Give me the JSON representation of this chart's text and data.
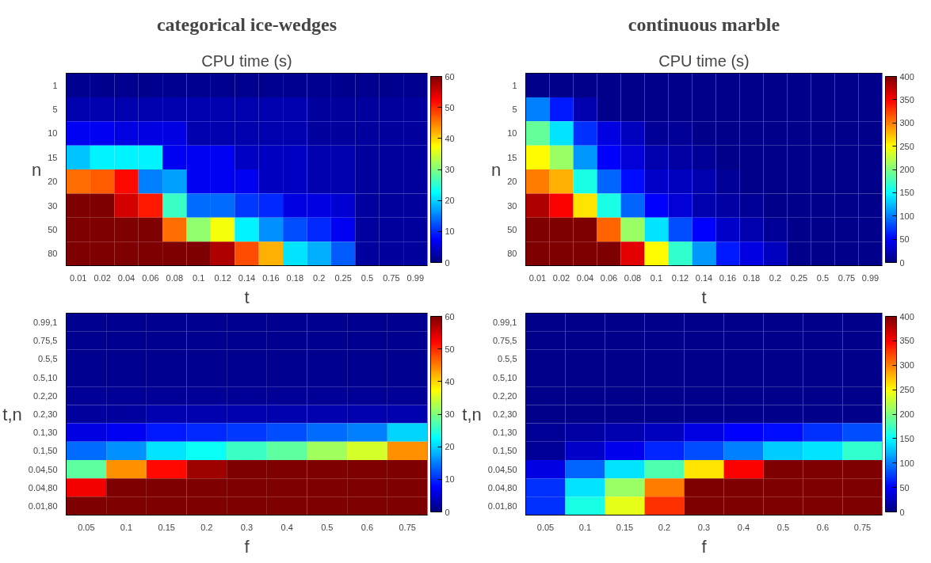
{
  "chart_data": [
    {
      "type": "heatmap",
      "subtitle": "categorical ice-wedges",
      "title": "CPU time (s)",
      "xlabel": "t",
      "ylabel": "n",
      "categories": [
        "0.01",
        "0.02",
        "0.04",
        "0.06",
        "0.08",
        "0.1",
        "0.12",
        "0.14",
        "0.16",
        "0.18",
        "0.2",
        "0.25",
        "0.5",
        "0.75",
        "0.99"
      ],
      "y_categories": [
        "1",
        "5",
        "10",
        "15",
        "20",
        "30",
        "50",
        "80"
      ],
      "cells": [
        [
          1,
          1,
          1,
          1,
          1,
          1,
          1,
          1,
          1,
          1,
          1,
          1,
          1,
          1,
          1
        ],
        [
          3,
          3,
          3,
          3,
          3,
          3,
          3,
          3,
          3,
          3,
          2,
          2,
          2,
          2,
          2
        ],
        [
          7,
          7,
          6,
          6,
          6,
          3,
          3,
          3,
          3,
          3,
          2,
          2,
          2,
          2,
          2
        ],
        [
          19,
          22,
          22,
          22,
          7,
          7,
          7,
          4,
          4,
          4,
          3,
          3,
          2,
          2,
          2
        ],
        [
          46,
          47,
          52,
          15,
          17,
          7,
          7,
          7,
          4,
          4,
          3,
          3,
          2,
          2,
          2
        ],
        [
          60,
          60,
          55,
          51,
          26,
          14,
          14,
          11,
          10,
          6,
          6,
          5,
          2,
          2,
          2
        ],
        [
          60,
          60,
          60,
          60,
          46,
          31,
          37,
          22,
          16,
          12,
          10,
          7,
          2,
          2,
          2
        ],
        [
          60,
          60,
          60,
          60,
          60,
          60,
          57,
          48,
          42,
          21,
          18,
          13,
          2,
          2,
          2
        ]
      ],
      "clim": [
        0,
        60
      ],
      "cticks": [
        0,
        10,
        20,
        30,
        40,
        50,
        60
      ]
    },
    {
      "type": "heatmap",
      "subtitle": "continuous marble",
      "title": "CPU time (s)",
      "xlabel": "t",
      "ylabel": "n",
      "categories": [
        "0.01",
        "0.02",
        "0.04",
        "0.06",
        "0.08",
        "0.1",
        "0.12",
        "0.14",
        "0.16",
        "0.18",
        "0.2",
        "0.25",
        "0.5",
        "0.75",
        "0.99"
      ],
      "y_categories": [
        "1",
        "5",
        "10",
        "15",
        "20",
        "30",
        "50",
        "80"
      ],
      "cells": [
        [
          5,
          5,
          5,
          5,
          5,
          5,
          5,
          5,
          5,
          5,
          5,
          5,
          5,
          5,
          5
        ],
        [
          100,
          60,
          20,
          5,
          5,
          5,
          5,
          5,
          5,
          5,
          5,
          5,
          5,
          5,
          5
        ],
        [
          190,
          140,
          70,
          40,
          25,
          10,
          10,
          5,
          5,
          5,
          5,
          5,
          5,
          5,
          5
        ],
        [
          250,
          210,
          110,
          50,
          35,
          20,
          15,
          10,
          5,
          5,
          5,
          5,
          5,
          5,
          5
        ],
        [
          300,
          280,
          160,
          90,
          55,
          30,
          25,
          20,
          10,
          5,
          5,
          5,
          5,
          5,
          5
        ],
        [
          380,
          350,
          260,
          160,
          90,
          50,
          35,
          20,
          15,
          10,
          5,
          5,
          5,
          5,
          5
        ],
        [
          400,
          400,
          400,
          310,
          210,
          140,
          80,
          50,
          30,
          20,
          10,
          5,
          5,
          5,
          5
        ],
        [
          400,
          400,
          400,
          400,
          360,
          250,
          170,
          110,
          60,
          40,
          25,
          5,
          5,
          5,
          5
        ]
      ],
      "clim": [
        0,
        400
      ],
      "cticks": [
        0,
        50,
        100,
        150,
        200,
        250,
        300,
        350,
        400
      ]
    },
    {
      "type": "heatmap",
      "xlabel": "f",
      "ylabel": "t,n",
      "categories": [
        "0.05",
        "0.1",
        "0.15",
        "0.2",
        "0.3",
        "0.4",
        "0.5",
        "0.6",
        "0.75"
      ],
      "y_categories": [
        "0.99,1",
        "0.75,5",
        "0.5,5",
        "0.5,10",
        "0.2,20",
        "0.2,30",
        "0.1,30",
        "0.1,50",
        "0.04,50",
        "0.04,80",
        "0.01,80"
      ],
      "cells": [
        [
          1,
          1,
          1,
          1,
          1,
          1,
          1,
          1,
          1
        ],
        [
          1,
          1,
          1,
          1,
          1,
          1,
          1,
          1,
          1
        ],
        [
          1,
          1,
          1,
          1,
          1,
          1,
          1,
          1,
          1
        ],
        [
          1,
          1,
          1,
          1,
          1,
          1,
          1,
          1,
          1
        ],
        [
          1.5,
          1.5,
          1.5,
          1.5,
          1.5,
          1.5,
          1.5,
          1.5,
          1.5
        ],
        [
          2,
          2,
          3,
          3,
          3,
          3,
          3,
          3,
          3
        ],
        [
          6,
          7,
          9,
          10,
          11,
          12,
          14,
          15,
          20
        ],
        [
          14,
          16,
          21,
          23,
          26,
          28,
          32,
          35,
          44
        ],
        [
          28,
          44,
          52,
          58,
          60,
          60,
          60,
          60,
          60
        ],
        [
          53,
          60,
          60,
          60,
          60,
          60,
          60,
          60,
          60
        ],
        [
          60,
          60,
          60,
          60,
          60,
          60,
          60,
          60,
          60
        ]
      ],
      "clim": [
        0,
        60
      ],
      "cticks": [
        0,
        10,
        20,
        30,
        40,
        50,
        60
      ]
    },
    {
      "type": "heatmap",
      "xlabel": "f",
      "ylabel": "t,n",
      "categories": [
        "0.05",
        "0.1",
        "0.15",
        "0.2",
        "0.3",
        "0.4",
        "0.5",
        "0.6",
        "0.75"
      ],
      "y_categories": [
        "0.99,1",
        "0.75,5",
        "0.5,5",
        "0.5,10",
        "0.2,20",
        "0.2,30",
        "0.1,30",
        "0.1,50",
        "0.04,50",
        "0.04,80",
        "0.01,80"
      ],
      "cells": [
        [
          5,
          5,
          5,
          5,
          5,
          5,
          5,
          5,
          5
        ],
        [
          5,
          5,
          5,
          5,
          5,
          5,
          5,
          5,
          5
        ],
        [
          5,
          5,
          5,
          5,
          5,
          5,
          5,
          5,
          5
        ],
        [
          5,
          5,
          5,
          5,
          5,
          5,
          5,
          5,
          5
        ],
        [
          5,
          5,
          5,
          5,
          5,
          5,
          5,
          5,
          5
        ],
        [
          5,
          5,
          5,
          5,
          5,
          5,
          5,
          5,
          5
        ],
        [
          10,
          15,
          20,
          25,
          40,
          50,
          55,
          70,
          80
        ],
        [
          10,
          30,
          45,
          65,
          80,
          100,
          130,
          140,
          170
        ],
        [
          40,
          90,
          140,
          180,
          260,
          350,
          400,
          400,
          400
        ],
        [
          70,
          140,
          210,
          300,
          400,
          400,
          400,
          400,
          400
        ],
        [
          70,
          160,
          240,
          330,
          400,
          400,
          400,
          400,
          400
        ]
      ],
      "clim": [
        0,
        400
      ],
      "cticks": [
        0,
        50,
        100,
        150,
        200,
        250,
        300,
        350,
        400
      ]
    }
  ]
}
